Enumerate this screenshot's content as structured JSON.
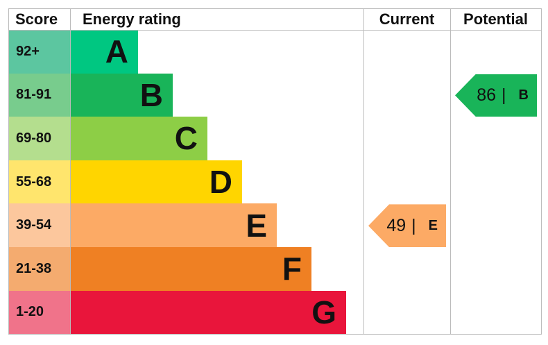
{
  "chart_data": {
    "type": "bar",
    "headers": {
      "score": "Score",
      "rating": "Energy rating",
      "current": "Current",
      "potential": "Potential"
    },
    "bands": [
      {
        "letter": "A",
        "range": "92+",
        "color": "#00c781",
        "score_color": "#5cc6a0"
      },
      {
        "letter": "B",
        "range": "81-91",
        "color": "#19b459",
        "score_color": "#78cc8d"
      },
      {
        "letter": "C",
        "range": "69-80",
        "color": "#8dce46",
        "score_color": "#b4de8e"
      },
      {
        "letter": "D",
        "range": "55-68",
        "color": "#ffd500",
        "score_color": "#ffe56d"
      },
      {
        "letter": "E",
        "range": "39-54",
        "color": "#fcaa65",
        "score_color": "#fcc79d"
      },
      {
        "letter": "F",
        "range": "21-38",
        "color": "#ef8023",
        "score_color": "#f4ab6f"
      },
      {
        "letter": "G",
        "range": "1-20",
        "color": "#e9153b",
        "score_color": "#f0738a"
      }
    ],
    "current": {
      "value": 49,
      "separator": "|",
      "letter": "E",
      "color": "#fcaa65"
    },
    "potential": {
      "value": 86,
      "separator": "|",
      "letter": "B",
      "color": "#19b459"
    }
  }
}
